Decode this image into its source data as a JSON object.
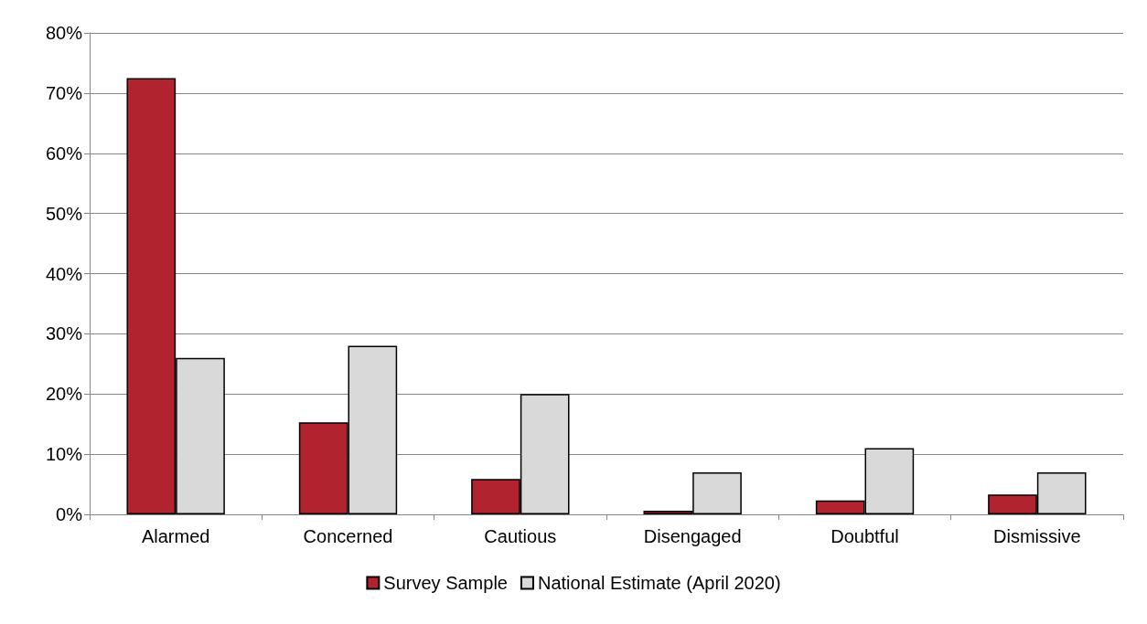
{
  "chart_data": {
    "type": "bar",
    "categories": [
      "Alarmed",
      "Concerned",
      "Cautious",
      "Disengaged",
      "Doubtful",
      "Dismissive"
    ],
    "series": [
      {
        "name": "Survey Sample",
        "color": "#b0232f",
        "values": [
          72.5,
          15.3,
          5.9,
          0.6,
          2.3,
          3.3
        ]
      },
      {
        "name": "National Estimate (April 2020)",
        "color": "#d9d9d9",
        "values": [
          26,
          28,
          20,
          7,
          11,
          7
        ]
      }
    ],
    "ylim": [
      0,
      80
    ],
    "yticks": [
      {
        "value": 0,
        "label": "0%"
      },
      {
        "value": 10,
        "label": "10%"
      },
      {
        "value": 20,
        "label": "20%"
      },
      {
        "value": 30,
        "label": "30%"
      },
      {
        "value": 40,
        "label": "40%"
      },
      {
        "value": 50,
        "label": "50%"
      },
      {
        "value": 60,
        "label": "60%"
      },
      {
        "value": 70,
        "label": "70%"
      },
      {
        "value": 80,
        "label": "80%"
      }
    ],
    "grid": "y",
    "legend": "bottom"
  }
}
